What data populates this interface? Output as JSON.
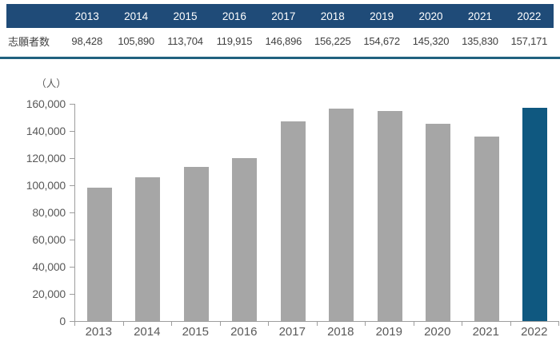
{
  "table": {
    "row_label": "志願者数",
    "years": [
      "2013",
      "2014",
      "2015",
      "2016",
      "2017",
      "2018",
      "2019",
      "2020",
      "2021",
      "2022"
    ],
    "values": [
      "98,428",
      "105,890",
      "113,704",
      "119,915",
      "146,896",
      "156,225",
      "154,672",
      "145,320",
      "135,830",
      "157,171"
    ]
  },
  "chart_data": {
    "type": "bar",
    "title": "",
    "unit_label": "（人）",
    "xlabel": "",
    "ylabel": "人",
    "categories": [
      "2013",
      "2014",
      "2015",
      "2016",
      "2017",
      "2018",
      "2019",
      "2020",
      "2021",
      "2022"
    ],
    "values": [
      98428,
      105890,
      113704,
      119915,
      146896,
      156225,
      154672,
      145320,
      135830,
      157171
    ],
    "ylim": [
      0,
      160000
    ],
    "ytick_interval": 20000,
    "ytick_labels": [
      "0",
      "20,000",
      "40,000",
      "60,000",
      "80,000",
      "100,000",
      "120,000",
      "140,000",
      "160,000"
    ],
    "grid": false,
    "legend": false,
    "highlight_category": "2022",
    "bar_color": "#a6a6a6",
    "highlight_color": "#0f5880"
  },
  "colors": {
    "header_bg": "#1f4b78",
    "header_text": "#ffffff",
    "divider": "#20617f",
    "axis": "#9d9d9d",
    "table_text": "#404040",
    "axis_text": "#595959"
  }
}
